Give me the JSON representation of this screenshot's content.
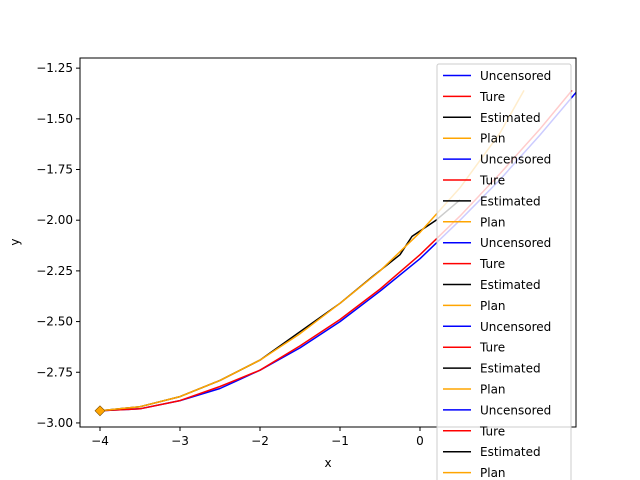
{
  "chart_data": {
    "type": "line",
    "title": "",
    "xlabel": "x",
    "ylabel": "y",
    "xlim": [
      -4.25,
      1.95
    ],
    "ylim": [
      -3.02,
      -1.2
    ],
    "xticks": [
      -4,
      -3,
      -2,
      -1,
      0
    ],
    "xtick_labels": [
      "−4",
      "−3",
      "−2",
      "−1",
      "0"
    ],
    "yticks": [
      -1.25,
      -1.5,
      -1.75,
      -2.0,
      -2.25,
      -2.5,
      -2.75,
      -3.0
    ],
    "ytick_labels": [
      "−1.25",
      "−1.50",
      "−1.75",
      "−2.00",
      "−2.25",
      "−2.50",
      "−2.75",
      "−3.00"
    ],
    "grid": false,
    "legend_position": "upper-right",
    "legend_entries": [
      {
        "name": "Uncensored",
        "color": "#0000ff"
      },
      {
        "name": "Ture",
        "color": "#ff0000"
      },
      {
        "name": "Estimated",
        "color": "#000000"
      },
      {
        "name": "Plan",
        "color": "#ffa500"
      },
      {
        "name": "Uncensored",
        "color": "#0000ff"
      },
      {
        "name": "Ture",
        "color": "#ff0000"
      },
      {
        "name": "Estimated",
        "color": "#000000"
      },
      {
        "name": "Plan",
        "color": "#ffa500"
      },
      {
        "name": "Uncensored",
        "color": "#0000ff"
      },
      {
        "name": "Ture",
        "color": "#ff0000"
      },
      {
        "name": "Estimated",
        "color": "#000000"
      },
      {
        "name": "Plan",
        "color": "#ffa500"
      },
      {
        "name": "Uncensored",
        "color": "#0000ff"
      },
      {
        "name": "Ture",
        "color": "#ff0000"
      },
      {
        "name": "Estimated",
        "color": "#000000"
      },
      {
        "name": "Plan",
        "color": "#ffa500"
      },
      {
        "name": "Uncensored",
        "color": "#0000ff"
      },
      {
        "name": "Ture",
        "color": "#ff0000"
      },
      {
        "name": "Estimated",
        "color": "#000000"
      },
      {
        "name": "Plan",
        "color": "#ffa500"
      }
    ],
    "series": [
      {
        "name": "Uncensored",
        "color": "#0000ff",
        "x": [
          -4.0,
          -3.5,
          -3.0,
          -2.5,
          -2.0,
          -1.5,
          -1.0,
          -0.5,
          0.0,
          0.5,
          1.0,
          1.5,
          1.95
        ],
        "y": [
          -2.94,
          -2.93,
          -2.89,
          -2.83,
          -2.74,
          -2.63,
          -2.5,
          -2.35,
          -2.19,
          -2.0,
          -1.8,
          -1.58,
          -1.37
        ]
      },
      {
        "name": "Ture",
        "color": "#ff0000",
        "x": [
          -4.0,
          -3.5,
          -3.0,
          -2.5,
          -2.0,
          -1.5,
          -1.0,
          -0.5,
          0.0,
          0.5,
          1.0,
          1.5,
          1.9
        ],
        "y": [
          -2.94,
          -2.93,
          -2.89,
          -2.82,
          -2.74,
          -2.62,
          -2.49,
          -2.34,
          -2.17,
          -1.98,
          -1.77,
          -1.55,
          -1.36
        ]
      },
      {
        "name": "Estimated",
        "color": "#000000",
        "x": [
          -4.0,
          -3.5,
          -3.0,
          -2.5,
          -2.0,
          -1.5,
          -1.0,
          -0.6,
          -0.25,
          -0.1,
          0.2,
          0.5
        ],
        "y": [
          -2.94,
          -2.92,
          -2.87,
          -2.79,
          -2.69,
          -2.55,
          -2.41,
          -2.28,
          -2.17,
          -2.08,
          -2.0,
          -1.9
        ]
      },
      {
        "name": "Plan",
        "color": "#ffa500",
        "x": [
          -4.0,
          -3.5,
          -3.0,
          -2.5,
          -2.0,
          -1.5,
          -1.0,
          -0.5,
          0.0,
          0.5,
          1.0,
          1.3
        ],
        "y": [
          -2.94,
          -2.92,
          -2.87,
          -2.79,
          -2.69,
          -2.56,
          -2.41,
          -2.25,
          -2.06,
          -1.84,
          -1.57,
          -1.36
        ]
      }
    ],
    "start_marker": {
      "x": -4.0,
      "y": -2.94,
      "shape": "diamond",
      "color": "#ffa500"
    }
  }
}
